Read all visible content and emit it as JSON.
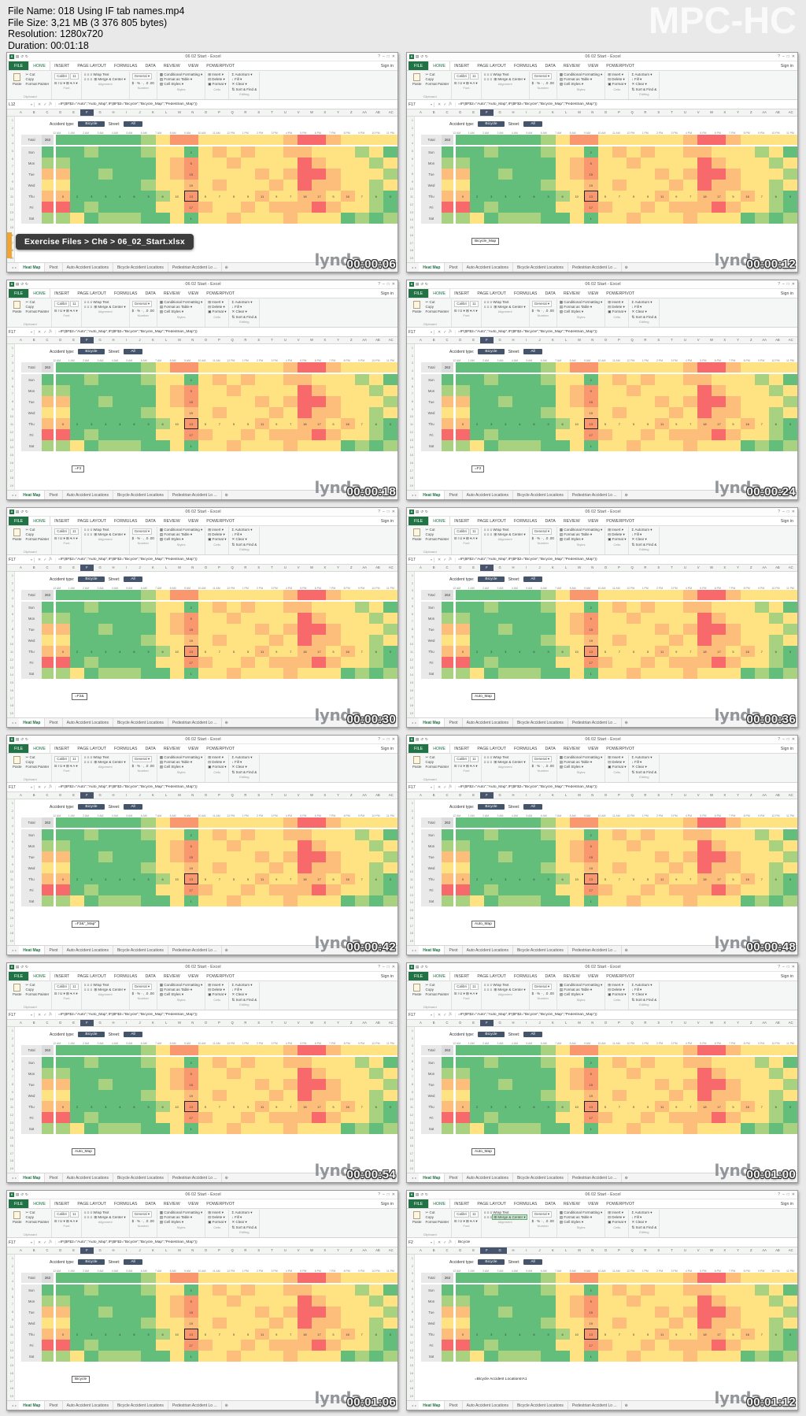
{
  "header": {
    "lines": [
      "File Name: 018 Using IF tab names.mp4",
      "File Size: 3,21 MB (3 376 805 bytes)",
      "Resolution: 1280x720",
      "Duration: 00:01:18"
    ],
    "logo": "MPC-HC"
  },
  "excel": {
    "window_title": "06 02 Start - Excel",
    "sign_in": "Sign in",
    "ribbon_tabs": [
      "FILE",
      "HOME",
      "INSERT",
      "PAGE LAYOUT",
      "FORMULAS",
      "DATA",
      "REVIEW",
      "VIEW",
      "POWERPIVOT"
    ],
    "ribbon": {
      "clipboard": {
        "name": "Clipboard",
        "big": "Paste",
        "items": [
          "✂ Cut",
          "Copy",
          "Format Painter"
        ]
      },
      "font": {
        "name": "Font",
        "family": "Calibri",
        "size": "11",
        "buttons": "B I U ▾ ⊞ ▾ A ▾"
      },
      "alignment": {
        "name": "Alignment",
        "icons1": "≡ ≡ ≡",
        "wrap": "Wrap Text",
        "icons2": "≡ ≡ ≡",
        "merge": "⊞ Merge & Center ▾"
      },
      "number": {
        "name": "Number",
        "format": "General",
        "buttons": "$ · % · ,   .0  .00"
      },
      "styles": {
        "name": "Styles",
        "items": [
          "▦ Conditional Formatting ▾",
          "▤ Format as Table ▾",
          "▧ Cell Styles ▾"
        ]
      },
      "cells": {
        "name": "Cells",
        "items": [
          "⊞ Insert ▾",
          "⊟ Delete ▾",
          "▣ Format ▾"
        ]
      },
      "editing": {
        "name": "Editing",
        "items": [
          "Σ AutoSum ▾",
          "↓ Fill ▾",
          "✕ Clear ▾",
          "⇅ Sort &  Find &"
        ]
      }
    },
    "default_formula": "=IF($F$2=\"Auto\",\"Auto_Map\",IF($F$2=\"Bicycle\",\"Bicycle_Map\",\"Pedestrian_Map\"))",
    "selected_headers": [
      "F"
    ],
    "col_headers": [
      "A",
      "B",
      "C",
      "D",
      "E",
      "F",
      "G",
      "H",
      "I",
      "J",
      "K",
      "L",
      "M",
      "N",
      "O",
      "P",
      "Q",
      "R",
      "S",
      "T",
      "U",
      "V",
      "W",
      "X",
      "Y",
      "Z",
      "AA",
      "AB",
      "AC"
    ],
    "row_numbers": [
      "1",
      "2",
      "3",
      "4",
      "5",
      "6",
      "7",
      "8",
      "9",
      "10",
      "11",
      "12",
      "13",
      "14",
      "15",
      "16",
      "17",
      "18",
      "19"
    ],
    "labels": {
      "accident_type": "Accident type:",
      "accident_value": "Bicycle",
      "street": "Street:",
      "street_value": "All",
      "total_label": "Total",
      "total_value": "263"
    },
    "time_cols": [
      "12 AM",
      "1 AM",
      "2 AM",
      "3 AM",
      "4 AM",
      "5 AM",
      "6 AM",
      "7 AM",
      "8 AM",
      "9 AM",
      "10 AM",
      "11 AM",
      "12 PM",
      "1 PM",
      "2 PM",
      "3 PM",
      "4 PM",
      "5 PM",
      "6 PM",
      "7 PM",
      "8 PM",
      "9 PM",
      "10 PM",
      "11 PM"
    ],
    "days": [
      "Sun",
      "Mon",
      "Tue",
      "Wed",
      "Thu",
      "Fri",
      "Sat"
    ],
    "heatmap": {
      "palette": {
        "G": "#63be7b",
        "g": "#a8d27f",
        "y": "#ffe383",
        "o": "#fdbd7b",
        "O": "#f9976f",
        "R": "#f8696b"
      },
      "total_row": "GGGGGGgyOOyyyyyyoRRoyyyy",
      "rows": {
        "Sun": "GGgGGGgyyGyoyoyyooyyygyG",
        "Mon": "gGGGGGGyoOyyoyyyyRoyyygy",
        "Tue": "oGGgGGGyoOyyyyoyoRRoyyyg",
        "Wed": "yGGGGGgyyoyoyyyoyRooyygy",
        "Thu": "oGGGGGGgyOyyyyoyyooyoygG",
        "Fri": "RGgGGGGyyOoyyoyoooRoyygG",
        "Sat": "gyGgggGGyGyyoyyyoyyyGgGg"
      },
      "day_colors": {
        "Sun": "G",
        "Mon": "g",
        "Tue": "o",
        "Wed": "y",
        "Thu": "o",
        "Fri": "R",
        "Sat": "g"
      },
      "thu_values": [
        0,
        2,
        3,
        3,
        4,
        6,
        3,
        6,
        10,
        13,
        5,
        7,
        5,
        5,
        11,
        9,
        7,
        18,
        17,
        5,
        16,
        7,
        6,
        0
      ],
      "nine_am_values": {
        "Sun": 2,
        "Mon": 5,
        "Tue": 15,
        "Wed": 19,
        "Thu": 13,
        "Fri": 17,
        "Sat": 1
      },
      "selected": {
        "row": "Thu",
        "col_index": 9,
        "value": 13
      }
    },
    "sheet_tabs": [
      "Heat Map",
      "Pivot",
      "Auto Accident Locations",
      "Bicycle Accident Locations",
      "Pedestrian Accident Lo ..."
    ],
    "status": "READY",
    "watermark": "lynda",
    "icons": {
      "qat": [
        "X",
        "▤",
        "↺",
        "↻"
      ],
      "win": [
        "?",
        "–",
        "□",
        "✕"
      ],
      "fbar": [
        "✕",
        "✓",
        "fx"
      ],
      "namebox_caret": "▾",
      "tabnav": [
        "◂",
        "▸"
      ],
      "views": [
        "▦",
        "▤",
        "▥"
      ],
      "zoom_minus": "−",
      "zoom_plus": "+",
      "add_tab": "⊕"
    }
  },
  "frames": [
    {
      "timestamp": "00:00:06",
      "name_box": "L12",
      "tooltip": "Exercise Files > Ch6 > 06_02_Start.xlsx"
    },
    {
      "timestamp": "00:00:12",
      "name_box": "F17",
      "edit_text": "Bicycle_Map"
    },
    {
      "timestamp": "00:00:18",
      "name_box": "F17",
      "edit_text": "=F2"
    },
    {
      "timestamp": "00:00:24",
      "name_box": "F17",
      "edit_text": "=F2"
    },
    {
      "timestamp": "00:00:30",
      "name_box": "F17",
      "edit_text": "=F2&"
    },
    {
      "timestamp": "00:00:36",
      "name_box": "F17",
      "edit_text": "Auto_Map"
    },
    {
      "timestamp": "00:00:42",
      "name_box": "F17",
      "edit_text": "=F2&\"_Map\""
    },
    {
      "timestamp": "00:00:48",
      "name_box": "F17",
      "edit_text": "Auto_Map"
    },
    {
      "timestamp": "00:00:54",
      "name_box": "F17",
      "edit_text": "Auto_Map"
    },
    {
      "timestamp": "00:01:00",
      "name_box": "F17",
      "edit_text": "Auto_Map"
    },
    {
      "timestamp": "00:01:06",
      "name_box": "F17",
      "edit_text": "Bicycle"
    },
    {
      "timestamp": "00:01:12",
      "name_box": "F2",
      "formula": "Bicycle",
      "edit_text": "=Bicycle Accident Locations!A1",
      "edit_plain": true,
      "merge_highlight": true,
      "selected_headers": [
        "F",
        "G"
      ]
    }
  ]
}
